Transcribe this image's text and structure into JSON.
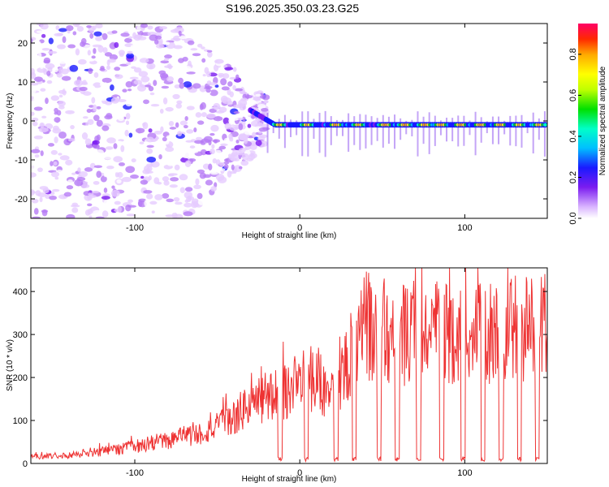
{
  "title": "S196.2025.350.03.23.G25",
  "chart_data": [
    {
      "type": "heatmap",
      "title": "S196.2025.350.03.23.G25",
      "xlabel": "Height of straight line (km)",
      "ylabel": "Frequency (Hz)",
      "xlim": [
        -163,
        150
      ],
      "ylim": [
        -25,
        25
      ],
      "x_ticks": [
        -100,
        0,
        100
      ],
      "x_tick_labels": [
        "-100",
        "0",
        "100"
      ],
      "y_ticks": [
        -20,
        -10,
        0,
        10,
        20
      ],
      "y_tick_labels": [
        "-20",
        "-10",
        "0",
        "10",
        "20"
      ],
      "colorbar": {
        "label": "Normalized spectral amplitude",
        "range": [
          0,
          0.95
        ],
        "ticks": [
          0.0,
          0.2,
          0.4,
          0.6,
          0.8
        ],
        "tick_labels": [
          "0.0",
          "0.2",
          "0.4",
          "0.6",
          "0.8"
        ]
      },
      "description_points": {
        "signal_line_frequency": -1,
        "noise_region_x_max": -30,
        "peak_x": [
          -12,
          5,
          22,
          36,
          52,
          64,
          76,
          86,
          98,
          110,
          122,
          133,
          145
        ]
      }
    },
    {
      "type": "line",
      "xlabel": "Height of straight line (km)",
      "ylabel": "SNR (10 * v/v)",
      "xlim": [
        -163,
        150
      ],
      "ylim": [
        0,
        455
      ],
      "x_ticks": [
        -100,
        0,
        100
      ],
      "x_tick_labels": [
        "-100",
        "0",
        "100"
      ],
      "y_ticks": [
        0,
        100,
        200,
        300,
        400
      ],
      "y_tick_labels": [
        "0",
        "100",
        "200",
        "300",
        "400"
      ],
      "series": [
        {
          "name": "SNR",
          "color": "#ee3333",
          "x": [
            -163,
            -140,
            -120,
            -100,
            -80,
            -60,
            -50,
            -40,
            -30,
            -20,
            -10,
            0,
            10,
            20,
            30,
            40,
            50,
            60,
            70,
            80,
            90,
            100,
            110,
            120,
            130,
            140,
            150
          ],
          "values": [
            15,
            20,
            28,
            40,
            55,
            70,
            85,
            105,
            140,
            150,
            165,
            190,
            200,
            150,
            250,
            320,
            315,
            300,
            290,
            310,
            300,
            305,
            300,
            310,
            320,
            315,
            320
          ],
          "dropouts_x": [
            -12,
            4,
            22,
            33,
            48,
            59,
            72,
            86,
            99,
            111,
            122,
            133,
            144
          ]
        }
      ]
    }
  ]
}
